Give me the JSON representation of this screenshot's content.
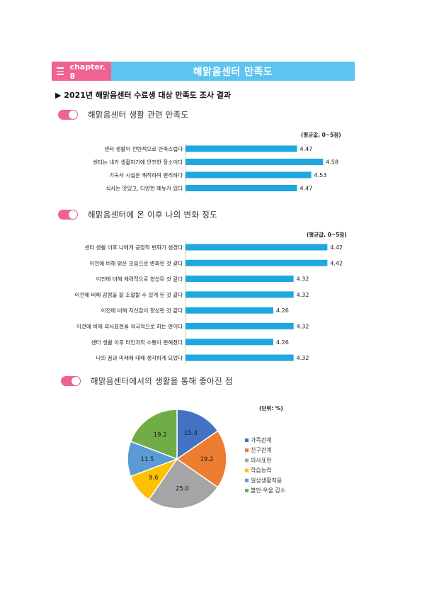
{
  "header": {
    "chapter": "chapter. 8",
    "title": "해맑음센터 만족도"
  },
  "survey_title": "▶ 2021년 해맑음센터 수료생 대상 만족도 조사 결과",
  "sections": [
    {
      "title": "해맑음센터 생활 관련 만족도",
      "unit": "(평균값, 0~5점)"
    },
    {
      "title": "해맑음센터에 온 이후 나의 변화 정도",
      "unit": "(평균값, 0~5점)"
    },
    {
      "title": "해맑음센터에서의 생활을 통해 좋아진 점",
      "unit": "(단위: %)"
    }
  ],
  "colors": {
    "pink": "#f06292",
    "sky": "#5ec3f0",
    "bar": "#1ea7e1"
  },
  "chart_data": [
    {
      "type": "bar",
      "orientation": "horizontal",
      "xlim": [
        4.0,
        4.6
      ],
      "categories": [
        "센터 생활이 전반적으로 만족스럽다",
        "센터는 내가 생활하기에 안전한 장소이다",
        "기숙사 시설은 쾌적하며 편리하다",
        "식사는 맛있고, 다양한 메뉴가 있다"
      ],
      "values": [
        4.47,
        4.58,
        4.53,
        4.47
      ],
      "labels": [
        "4.47",
        "4.58",
        "4.53",
        "4.47"
      ]
    },
    {
      "type": "bar",
      "orientation": "horizontal",
      "xlim": [
        4.0,
        4.6
      ],
      "categories": [
        "센터 생활 이후 나에게 긍정적 변화가 생겼다",
        "이전에 비해 밝은 모습으로 변화된 것 같다",
        "이전에 비해 체력적으로 향상된 것 같다",
        "이전에 비해 감정을 잘 조절할 수 있게 된 것 같다",
        "이전에 비해 자신감이 향상된 것 같다",
        "이전에 비해 의사표현을 적극적으로 하는 편이다",
        "센터 생활 이후 타인과의 소통이 편해졌다",
        "나의 꿈과 미래에 대해 생각하게 되었다"
      ],
      "values": [
        4.42,
        4.42,
        4.32,
        4.32,
        4.26,
        4.32,
        4.26,
        4.32
      ],
      "labels": [
        "4.42",
        "4.42",
        "4.32",
        "4.32",
        "4.26",
        "4.32",
        "4.26",
        "4.32"
      ]
    },
    {
      "type": "pie",
      "categories": [
        "가족관계",
        "친구관계",
        "의사표현",
        "학습능력",
        "일상생활적응",
        "불안·우울 감소"
      ],
      "values": [
        15.4,
        19.2,
        25.0,
        9.6,
        11.5,
        19.2
      ],
      "labels": [
        "15.4",
        "19.2",
        "25.0",
        "9.6",
        "11.5",
        "19.2"
      ],
      "colors": [
        "#4472c4",
        "#ed7d31",
        "#a5a5a5",
        "#ffc000",
        "#5b9bd5",
        "#70ad47"
      ],
      "legend": "right"
    }
  ]
}
